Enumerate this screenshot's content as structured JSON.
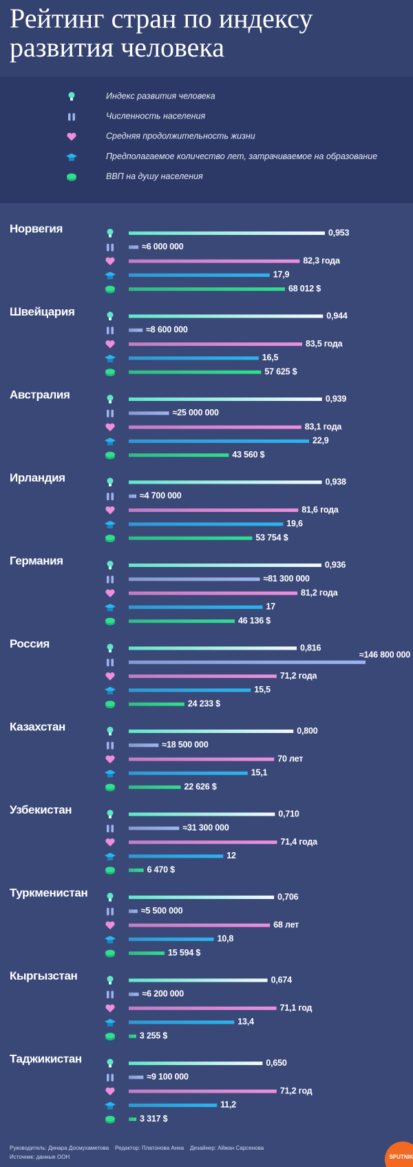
{
  "chart_data": {
    "type": "grouped-bar",
    "title": "Рейтинг стран по индексу развития человека",
    "categories": [
      "Норвегия",
      "Швейцария",
      "Австралия",
      "Ирландия",
      "Германия",
      "Россия",
      "Казахстан",
      "Узбекистан",
      "Туркменистан",
      "Кыргызстан",
      "Таджикистан"
    ],
    "series": [
      {
        "name": "Индекс развития человека",
        "color": "#5ee6c8",
        "values": [
          0.953,
          0.944,
          0.939,
          0.938,
          0.936,
          0.816,
          0.8,
          0.71,
          0.706,
          0.674,
          0.65
        ],
        "value_labels": [
          "0,953",
          "0,944",
          "0,939",
          "0,938",
          "0,936",
          "0,816",
          "0,800",
          "0,710",
          "0,706",
          "0,674",
          "0,650"
        ]
      },
      {
        "name": "Численность населения",
        "color": "#9fb4ee",
        "values": [
          6000000,
          8600000,
          25000000,
          4700000,
          81300000,
          146800000,
          18500000,
          31300000,
          5500000,
          6200000,
          9100000
        ],
        "value_labels": [
          "≈6 000 000",
          "≈8 600 000",
          "≈25 000 000",
          "≈4 700 000",
          "≈81 300 000",
          "≈146 800 000",
          "≈18 500 000",
          "≈31 300 000",
          "≈5 500 000",
          "≈6 200 000",
          "≈9 100 000"
        ]
      },
      {
        "name": "Средняя продолжительность жизни",
        "color": "#ec8fdc",
        "values": [
          82.3,
          83.5,
          83.1,
          81.6,
          81.2,
          71.2,
          70,
          71.4,
          68,
          71.1,
          71.2
        ],
        "value_labels": [
          "82,3 года",
          "83,5 года",
          "83,1 года",
          "81,6 года",
          "81,2 года",
          "71,2 года",
          "70 лет",
          "71,4 года",
          "68 лет",
          "71,1 год",
          "71,2 год"
        ]
      },
      {
        "name": "Предполагаемое количество лет, затрачиваемое на образование",
        "color": "#2bb4ee",
        "values": [
          17.9,
          16.5,
          22.9,
          19.6,
          17,
          15.5,
          15.1,
          12,
          10.8,
          13.4,
          11.2
        ],
        "value_labels": [
          "17,9",
          "16,5",
          "22,9",
          "19,6",
          "17",
          "15,5",
          "15,1",
          "12",
          "10,8",
          "13,4",
          "11,2"
        ]
      },
      {
        "name": "ВВП на душу населения",
        "color": "#2ee08e",
        "values": [
          68012,
          57625,
          43560,
          53754,
          46136,
          24233,
          22626,
          6470,
          15594,
          3255,
          3317
        ],
        "value_labels": [
          "68 012 $",
          "57 625 $",
          "43 560 $",
          "53 754 $",
          "46 136 $",
          "24 233 $",
          "22 626 $",
          "6 470 $",
          "15 594 $",
          "3 255 $",
          "3 317 $"
        ]
      }
    ],
    "credits": [
      "Руководитель: Динара Досмухаметова",
      "Редактор: Платонова Анна",
      "Дизайнер: Айжан Сарсенова"
    ],
    "source": "Источник: данные ООН",
    "logo": "SPUTNIK"
  }
}
